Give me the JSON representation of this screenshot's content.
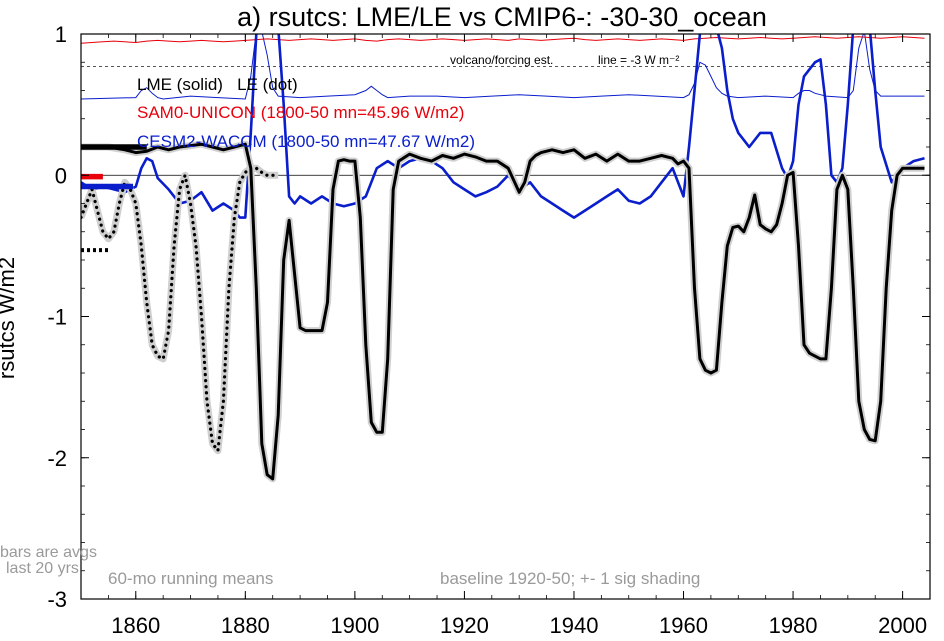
{
  "chart_data": {
    "type": "line",
    "title": "a) rsutcs: LME/LE vs CMIP6-: -30-30_ocean",
    "ylabel": "rsutcs W/m2",
    "xlabel": "",
    "xlim": [
      1850,
      2005
    ],
    "ylim": [
      -3,
      1
    ],
    "xticks": [
      1860,
      1880,
      1900,
      1920,
      1940,
      1960,
      1980,
      2000
    ],
    "yticks": [
      1,
      0,
      -1,
      -2,
      -3
    ],
    "ytick_labels": [
      "1",
      "0",
      "-1",
      "-2",
      "-3"
    ],
    "grid": false,
    "zero_line": 0,
    "reference_line": {
      "y": 0.77,
      "label_left": "volcano/forcing est.",
      "label_right": "line = -3 W m⁻²"
    },
    "legend": [
      {
        "label": "LME (solid)   LE (dot)",
        "color": "#000000"
      },
      {
        "label": "SAM0-UNICON (1800-50 mn=45.96 W/m2)",
        "color": "#e8000b"
      },
      {
        "label": "CESM2-WACCM (1800-50 mn=47.67 W/m2)",
        "color": "#0a1ecc"
      }
    ],
    "annotations": {
      "bars_note_1": "bars are avgs",
      "bars_note_2": "last 20 yrs",
      "running_mean": "60-mo running means",
      "baseline": "baseline 1920-50; +- 1 sig shading"
    },
    "avg_bars": [
      {
        "series": "LME",
        "y": 0.2,
        "x": [
          1850,
          1862
        ],
        "style": "solid",
        "color": "#000000"
      },
      {
        "series": "LE",
        "y": -0.53,
        "x": [
          1850,
          1855
        ],
        "style": "dotted",
        "color": "#000000"
      },
      {
        "series": "SAM0-UNICON",
        "y": -0.01,
        "x": [
          1850,
          1854
        ],
        "style": "solid",
        "color": "#e8000b"
      },
      {
        "series": "CESM2-WACCM",
        "y": -0.08,
        "x": [
          1850,
          1859.5
        ],
        "style": "solid",
        "color": "#0a1ecc"
      }
    ],
    "series": [
      {
        "name": "LME (solid)",
        "color": "#000000",
        "style": "solid",
        "x": [
          1850,
          1855,
          1858,
          1860,
          1862,
          1864,
          1866,
          1868,
          1870,
          1872,
          1874,
          1876,
          1878,
          1880,
          1881,
          1882,
          1883,
          1884,
          1885,
          1886,
          1887,
          1888,
          1889,
          1890,
          1891,
          1892,
          1893,
          1894,
          1895,
          1896,
          1897,
          1898,
          1899,
          1900,
          1901,
          1902,
          1903,
          1904,
          1905,
          1906,
          1907,
          1908,
          1910,
          1912,
          1914,
          1916,
          1918,
          1920,
          1922,
          1924,
          1926,
          1928,
          1930,
          1931,
          1932,
          1933,
          1934,
          1936,
          1938,
          1940,
          1942,
          1944,
          1946,
          1948,
          1950,
          1952,
          1954,
          1956,
          1958,
          1959,
          1960,
          1961,
          1962,
          1963,
          1964,
          1965,
          1966,
          1967,
          1968,
          1969,
          1970,
          1971,
          1972,
          1973,
          1974,
          1975,
          1976,
          1977,
          1978,
          1979,
          1980,
          1981,
          1982,
          1983,
          1984,
          1985,
          1986,
          1987,
          1988,
          1989,
          1990,
          1991,
          1992,
          1993,
          1994,
          1995,
          1996,
          1997,
          1998,
          1999,
          2000,
          2002,
          2004
        ],
        "values": [
          0.2,
          0.2,
          0.18,
          0.16,
          0.17,
          0.2,
          0.18,
          0.2,
          0.21,
          0.22,
          0.2,
          0.18,
          0.2,
          0.22,
          0.05,
          -0.8,
          -1.9,
          -2.12,
          -2.15,
          -1.7,
          -0.6,
          -0.32,
          -0.7,
          -1.08,
          -1.1,
          -1.1,
          -1.1,
          -1.1,
          -0.9,
          -0.1,
          0.1,
          0.11,
          0.1,
          0.1,
          -0.3,
          -1.2,
          -1.75,
          -1.82,
          -1.82,
          -1.3,
          -0.1,
          0.1,
          0.15,
          0.12,
          0.1,
          0.14,
          0.12,
          0.15,
          0.13,
          0.1,
          0.1,
          0.05,
          -0.12,
          -0.05,
          0.1,
          0.14,
          0.16,
          0.18,
          0.16,
          0.18,
          0.12,
          0.15,
          0.1,
          0.15,
          0.1,
          0.1,
          0.12,
          0.14,
          0.12,
          0.08,
          0.1,
          0.05,
          -0.8,
          -1.3,
          -1.38,
          -1.4,
          -1.38,
          -0.9,
          -0.5,
          -0.37,
          -0.36,
          -0.4,
          -0.3,
          -0.14,
          -0.35,
          -0.38,
          -0.4,
          -0.35,
          -0.2,
          0.0,
          0.02,
          -0.5,
          -1.2,
          -1.26,
          -1.28,
          -1.3,
          -1.3,
          -0.8,
          -0.1,
          0.0,
          -0.1,
          -0.8,
          -1.6,
          -1.8,
          -1.87,
          -1.88,
          -1.6,
          -0.8,
          -0.25,
          0.0,
          0.05,
          0.05,
          0.05
        ]
      },
      {
        "name": "LE (dot)",
        "color": "#000000",
        "style": "dotted",
        "x": [
          1850,
          1851,
          1852,
          1853,
          1854,
          1855,
          1856,
          1857,
          1858,
          1859,
          1860,
          1861,
          1862,
          1863,
          1864,
          1865,
          1866,
          1867,
          1868,
          1869,
          1870,
          1871,
          1872,
          1873,
          1874,
          1875,
          1876,
          1877,
          1878,
          1879,
          1880,
          1881,
          1882,
          1883,
          1884,
          1885,
          1886
        ],
        "values": [
          -0.3,
          -0.2,
          -0.1,
          -0.25,
          -0.4,
          -0.45,
          -0.4,
          -0.2,
          -0.05,
          -0.1,
          -0.2,
          -0.5,
          -0.9,
          -1.2,
          -1.28,
          -1.3,
          -1.1,
          -0.5,
          -0.1,
          0.0,
          -0.2,
          -0.5,
          -1.0,
          -1.6,
          -1.9,
          -1.95,
          -1.6,
          -0.8,
          -0.3,
          -0.05,
          0.02,
          0.05,
          0.05,
          0.02,
          0.0,
          0.0,
          0.0
        ]
      },
      {
        "name": "CESM2-WACCM",
        "color": "#0a1ecc",
        "style": "solid",
        "x": [
          1850,
          1852,
          1854,
          1856,
          1858,
          1860,
          1861,
          1862,
          1863,
          1864,
          1866,
          1868,
          1870,
          1872,
          1874,
          1876,
          1878,
          1879,
          1880,
          1881,
          1882,
          1883,
          1884,
          1885,
          1886,
          1887,
          1888,
          1889,
          1890,
          1892,
          1894,
          1896,
          1898,
          1900,
          1902,
          1904,
          1906,
          1908,
          1910,
          1912,
          1914,
          1916,
          1918,
          1920,
          1922,
          1924,
          1926,
          1928,
          1930,
          1932,
          1934,
          1936,
          1938,
          1940,
          1942,
          1944,
          1946,
          1948,
          1950,
          1952,
          1954,
          1956,
          1958,
          1960,
          1961,
          1962,
          1963,
          1964,
          1965,
          1966,
          1967,
          1968,
          1969,
          1970,
          1971,
          1972,
          1974,
          1976,
          1978,
          1979,
          1980,
          1981,
          1982,
          1983,
          1984,
          1985,
          1986,
          1987,
          1988,
          1989,
          1990,
          1991,
          1992,
          1993,
          1994,
          1995,
          1996,
          1998,
          2000,
          2002,
          2004
        ],
        "values": [
          -0.05,
          -0.1,
          -0.08,
          -0.1,
          -0.12,
          -0.08,
          0.05,
          0.12,
          0.1,
          -0.02,
          -0.1,
          -0.2,
          -0.18,
          -0.12,
          -0.25,
          -0.2,
          -0.25,
          -0.3,
          -0.3,
          0.3,
          1.0,
          1.05,
          1.05,
          1.05,
          1.05,
          0.5,
          -0.15,
          -0.2,
          -0.15,
          -0.2,
          -0.15,
          -0.2,
          -0.22,
          -0.2,
          -0.15,
          0.05,
          0.1,
          0.05,
          0.1,
          0.12,
          0.1,
          0.05,
          -0.05,
          -0.1,
          -0.15,
          -0.12,
          -0.08,
          0.0,
          -0.1,
          -0.05,
          -0.15,
          -0.2,
          -0.25,
          -0.3,
          -0.25,
          -0.2,
          -0.15,
          -0.1,
          -0.18,
          -0.2,
          -0.15,
          -0.05,
          0.05,
          -0.15,
          0.2,
          0.6,
          1.0,
          1.05,
          1.05,
          1.05,
          0.9,
          0.6,
          0.4,
          0.3,
          0.25,
          0.2,
          0.3,
          0.3,
          0.05,
          -0.02,
          0.1,
          0.5,
          0.7,
          0.75,
          0.8,
          0.82,
          0.5,
          0.0,
          -0.05,
          0.05,
          0.5,
          1.05,
          1.05,
          1.05,
          1.05,
          0.6,
          0.2,
          -0.05,
          0.05,
          0.1,
          0.12
        ]
      },
      {
        "name": "SAM0-UNICON",
        "color": "#e8000b",
        "style": "solid",
        "x": [
          1850,
          1852,
          1854,
          1856,
          1858,
          1860,
          1862,
          1864,
          1866,
          1868,
          1870,
          1872,
          1874,
          1876,
          1878,
          1880,
          1882,
          1884,
          1886,
          1888,
          1890,
          1892,
          1894,
          1896,
          1898,
          1900,
          1902,
          1904,
          1906,
          1908,
          1910,
          1912,
          1914,
          1916,
          1918,
          1920,
          1922,
          1924,
          1926,
          1928,
          1930,
          1932,
          1934,
          1936,
          1938,
          1940,
          1942,
          1944,
          1946,
          1948,
          1950,
          1952,
          1954,
          1956,
          1958,
          1960,
          1962,
          1964,
          1966,
          1968,
          1970,
          1972,
          1974,
          1976,
          1978,
          1980,
          1982,
          1984,
          1986,
          1988,
          1990,
          1992,
          1994,
          1996,
          1998,
          2000,
          2002,
          2004
        ],
        "values": [
          0.935,
          0.94,
          0.945,
          0.95,
          0.945,
          0.94,
          0.95,
          0.955,
          0.95,
          0.945,
          0.95,
          0.955,
          0.95,
          0.945,
          0.95,
          0.955,
          0.96,
          0.965,
          0.96,
          0.955,
          0.96,
          0.965,
          0.96,
          0.955,
          0.96,
          0.965,
          0.955,
          0.95,
          0.96,
          0.965,
          0.96,
          0.955,
          0.96,
          0.965,
          0.96,
          0.955,
          0.96,
          0.965,
          0.96,
          0.955,
          0.965,
          0.96,
          0.955,
          0.96,
          0.965,
          0.97,
          0.96,
          0.955,
          0.96,
          0.965,
          0.96,
          0.955,
          0.96,
          0.965,
          0.96,
          0.955,
          0.965,
          0.97,
          0.975,
          0.97,
          0.965,
          0.97,
          0.975,
          0.97,
          0.965,
          0.97,
          0.975,
          0.98,
          0.975,
          0.97,
          0.975,
          0.98,
          0.975,
          0.97,
          0.975,
          0.98,
          0.975,
          0.97
        ]
      },
      {
        "name": "volcano/forcing est.",
        "color": "#0a1ecc",
        "style": "thin",
        "x": [
          1850,
          1860,
          1861,
          1862,
          1863,
          1864,
          1865,
          1870,
          1875,
          1880,
          1881,
          1882,
          1883,
          1884,
          1885,
          1886,
          1890,
          1895,
          1900,
          1902,
          1903,
          1904,
          1905,
          1906,
          1910,
          1915,
          1920,
          1925,
          1930,
          1935,
          1940,
          1945,
          1950,
          1955,
          1960,
          1961,
          1962,
          1963,
          1964,
          1965,
          1966,
          1967,
          1968,
          1970,
          1975,
          1980,
          1981,
          1982,
          1983,
          1984,
          1985,
          1986,
          1990,
          1991,
          1992,
          1993,
          1994,
          1995,
          1996,
          2000,
          2004
        ],
        "values": [
          0.54,
          0.55,
          0.6,
          0.62,
          0.58,
          0.55,
          0.54,
          0.56,
          0.55,
          0.54,
          0.7,
          1.02,
          1.02,
          0.85,
          0.62,
          0.56,
          0.55,
          0.56,
          0.57,
          0.6,
          0.63,
          0.6,
          0.57,
          0.55,
          0.56,
          0.56,
          0.55,
          0.56,
          0.57,
          0.56,
          0.55,
          0.56,
          0.57,
          0.56,
          0.55,
          0.57,
          0.65,
          0.8,
          0.78,
          0.7,
          0.62,
          0.58,
          0.56,
          0.55,
          0.56,
          0.55,
          0.58,
          0.6,
          0.6,
          0.58,
          0.57,
          0.56,
          0.55,
          0.6,
          0.9,
          1.02,
          0.75,
          0.6,
          0.56,
          0.56,
          0.56
        ]
      }
    ]
  }
}
